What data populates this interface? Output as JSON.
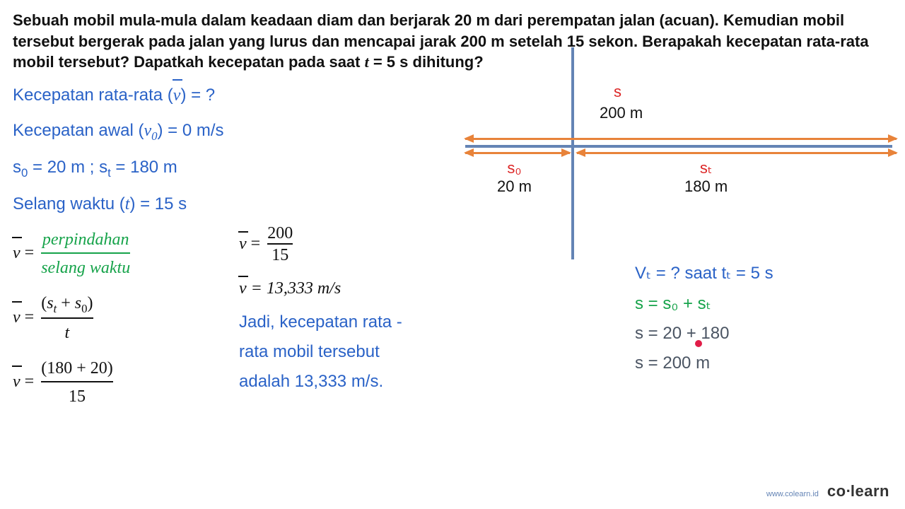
{
  "question": "Sebuah mobil mula-mula dalam keadaan diam dan berjarak 20 m dari perempatan jalan (acuan). Kemudian mobil tersebut bergerak pada jalan yang lurus dan mencapai jarak 200 m setelah 15 sekon. Berapakah kecepatan rata-rata mobil tersebut? Dapatkah kecepatan pada saat t = 5 s dihitung?",
  "given": {
    "avg_v_label": "Kecepatan rata-rata (",
    "avg_v_q": ") = ?",
    "v0_label": "Kecepatan awal (",
    "v0_val": ") = 0 m/s",
    "s_line": "= 20 m ; ",
    "s_line2": "= 180 m",
    "t_label": "Selang waktu (",
    "t_val": ") = 15 s"
  },
  "formulas": {
    "perp": "perpindahan",
    "selang": "selang waktu",
    "st_s0": "(sₜ + s₀)",
    "t": "t",
    "nums": "(180 + 20)",
    "den15": "15",
    "num200": "200"
  },
  "result": {
    "v_val": " = 13,333 m/s",
    "concl1": "Jadi, kecepatan rata -",
    "concl2": "rata mobil tersebut",
    "concl3": "adalah 13,333 m/s."
  },
  "diagram": {
    "s_label": "s",
    "s_val": "200 m",
    "s0_label": "s₀",
    "s0_val": "20 m",
    "st_label": "sₜ",
    "st_val": "180 m"
  },
  "right": {
    "vt_q": "Vₜ = ?  saat tₜ = 5 s",
    "s_eq": "s = s₀ + sₜ",
    "s_nums": "s = 20 +  180",
    "s_res": "s = 200 m"
  },
  "footer": {
    "url": "www.colearn.id",
    "brand_pre": "co",
    "brand_dot": "·",
    "brand_post": "learn"
  }
}
